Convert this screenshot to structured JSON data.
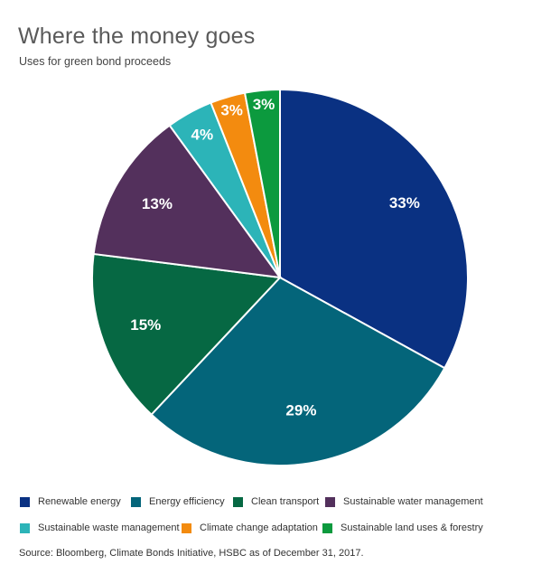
{
  "title": "Where the money goes",
  "subtitle": "Uses for green bond proceeds",
  "source": "Source: Bloomberg, Climate Bonds Initiative, HSBC as of December 31, 2017.",
  "chart_data": {
    "type": "pie",
    "title": "Where the money goes",
    "subtitle": "Uses for green bond proceeds",
    "slices": [
      {
        "name": "Renewable energy",
        "value": 33,
        "label": "33%",
        "color": "#0a3182"
      },
      {
        "name": "Energy efficiency",
        "value": 29,
        "label": "29%",
        "color": "#04657a"
      },
      {
        "name": "Clean transport",
        "value": 15,
        "label": "15%",
        "color": "#066843"
      },
      {
        "name": "Sustainable water management",
        "value": 13,
        "label": "13%",
        "color": "#53305c"
      },
      {
        "name": "Sustainable waste management",
        "value": 4,
        "label": "4%",
        "color": "#2cb4b8"
      },
      {
        "name": "Climate change adaptation",
        "value": 3,
        "label": "3%",
        "color": "#f38b0f"
      },
      {
        "name": "Sustainable land uses & forestry",
        "value": 3,
        "label": "3%",
        "color": "#0c9a3e"
      }
    ],
    "legend_position": "bottom"
  }
}
